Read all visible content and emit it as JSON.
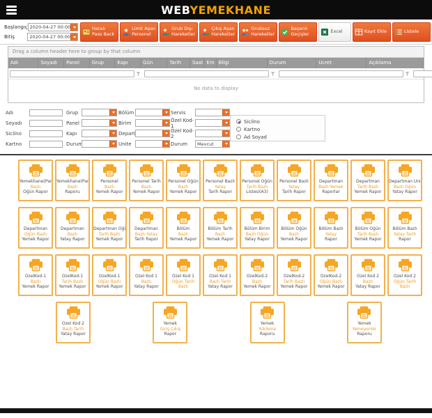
{
  "colors": {
    "accent_orange": "#e8702a",
    "brand_gold": "#f0a202",
    "report_border": "#f3b14c",
    "report_icon": "#f5a623",
    "grid_header_bg": "#9b9b9b"
  },
  "header": {
    "title_web": "WEB",
    "title_rest": "YEMEKHANE"
  },
  "toolbar": {
    "start_label": "Başlangıç",
    "start_value": "2020-04-27 00:00",
    "end_label": "Bitiş",
    "end_value": "2020-04-27 00:00",
    "buttons": [
      {
        "label": "Hatalı Pass Back",
        "icon": "idcard-icon",
        "style": "orange"
      },
      {
        "label": "Limit Aşan Personel",
        "icon": "person-icon",
        "style": "orange"
      },
      {
        "label": "Grub Dışı Hareketler",
        "icon": "person-arrow-icon",
        "style": "orange"
      },
      {
        "label": "Çıkış Aşan Hareketler",
        "icon": "person-arrow-icon",
        "style": "orange"
      },
      {
        "label": "Grubsuz Hareketler",
        "icon": "people-icon",
        "style": "orange"
      },
      {
        "label": "Başarılı Geçişler",
        "icon": "approve-icon",
        "style": "orange"
      },
      {
        "label": "Excel",
        "icon": "excel-icon",
        "style": "light"
      },
      {
        "label": "Kayıt Ekle",
        "icon": "add-record-icon",
        "style": "orange"
      },
      {
        "label": "Listele",
        "icon": "list-icon",
        "style": "orange"
      }
    ]
  },
  "grid": {
    "group_hint": "Drag a column header here to group by that column",
    "empty_text": "No data to display",
    "columns": [
      {
        "label": "Adı",
        "flex": 43,
        "filter": "plain"
      },
      {
        "label": "Soyadı",
        "flex": 35,
        "filter": "plain"
      },
      {
        "label": "Panel",
        "flex": 35,
        "filter": "plain"
      },
      {
        "label": "Grup",
        "flex": 35,
        "filter": "plain"
      },
      {
        "label": "Kapı",
        "flex": 35,
        "filter": "plain"
      },
      {
        "label": "Gün",
        "flex": 37,
        "filter": "plain"
      },
      {
        "label": "Tarih",
        "flex": 30,
        "filter": "orange"
      },
      {
        "label": "Saat",
        "flex": 16,
        "filter": "plain"
      },
      {
        "label": "Em",
        "flex": 12,
        "filter": "plain"
      },
      {
        "label": "Bilgi",
        "flex": 78,
        "filter": "plain"
      },
      {
        "label": "Durum",
        "flex": 75,
        "filter": "orange"
      },
      {
        "label": "Ucret",
        "flex": 77,
        "filter": "plain"
      },
      {
        "label": "Açıklama",
        "flex": 88,
        "filter": "plain"
      }
    ]
  },
  "form": {
    "rows": [
      {
        "label1": "Adı",
        "label2": "Grup",
        "label3": "Bölüm",
        "label4": "Servis",
        "value4": ""
      },
      {
        "label1": "Soyadı",
        "label2": "Panel",
        "label3": "Birim",
        "label4": "Özel Kod-1",
        "value4": ""
      },
      {
        "label1": "Sicilno",
        "label2": "Kapı",
        "label3": "Departman",
        "label4": "Özel Kod-2",
        "value4": ""
      },
      {
        "label1": "Kartno",
        "label2": "Durum",
        "label3": "Unite",
        "label4": "Durum",
        "value4": "Mevcut"
      }
    ],
    "radio_options": [
      {
        "label": "Sicilno",
        "selected": true
      },
      {
        "label": "Kartno",
        "selected": false
      },
      {
        "label": "Ad Soyad",
        "selected": false
      }
    ]
  },
  "reports": {
    "rows": [
      [
        {
          "lines": [
            "Yemekhane(Panel)",
            "Bazlı",
            "Öğün Rapor"
          ],
          "orange": [
            1
          ]
        },
        {
          "lines": [
            "Yemekhane(Panel)",
            "Bazlı",
            "Raporu"
          ],
          "orange": [
            1
          ]
        },
        {
          "lines": [
            "Personel",
            "Bazlı",
            "Yemek Rapor"
          ],
          "orange": [
            1
          ]
        },
        {
          "lines": [
            "Personel Tarih",
            "Bazlı",
            "Yemek Rapor"
          ],
          "orange": [
            1
          ]
        },
        {
          "lines": [
            "Personel Öğün",
            "Bazlı",
            "Yemek Rapor"
          ],
          "orange": [
            1
          ]
        },
        {
          "lines": [
            "Personel Bazlı",
            "Yatay",
            "Tarih Rapor"
          ],
          "orange": [
            1
          ]
        },
        {
          "lines": [
            "Personel Öğün",
            "Tarih Bazlı",
            "Listesi(A3)"
          ],
          "orange": [
            1
          ]
        },
        {
          "lines": [
            "Personel Bazlı",
            "Yatay",
            "Tarih Rapor"
          ],
          "orange": [
            1
          ]
        },
        {
          "lines": [
            "Departman",
            "Bazlı Yemek",
            "Raporlar"
          ],
          "orange": [
            1
          ]
        },
        {
          "lines": [
            "Departman",
            "Tarih Bazlı",
            "Yemek Rapor"
          ],
          "orange": [
            1
          ]
        },
        {
          "lines": [
            "Departman Ünite",
            "Bazlı Öğün",
            "Yatay Rapor"
          ],
          "orange": [
            1
          ]
        }
      ],
      [
        {
          "lines": [
            "Departman",
            "Öğün Bazlı",
            "Yemek Rapor"
          ],
          "orange": [
            1
          ]
        },
        {
          "lines": [
            "Departman",
            "Bazlı",
            "Yatay Rapor"
          ],
          "orange": [
            1
          ]
        },
        {
          "lines": [
            "Departman Öğün",
            "Tarih Bazlı",
            "Yemek Rapor"
          ],
          "orange": [
            1
          ]
        },
        {
          "lines": [
            "Departman",
            "Bazlı Yatay",
            "Tarih Rapor"
          ],
          "orange": [
            1
          ]
        },
        {
          "lines": [
            "Bölüm",
            "Bazlı",
            "Yemek Rapor"
          ],
          "orange": [
            1
          ]
        },
        {
          "lines": [
            "Bölüm Tarih",
            "Bazlı",
            "Yemek Rapor"
          ],
          "orange": [
            1
          ]
        },
        {
          "lines": [
            "Bölüm Birim",
            "Bazlı Öğün",
            "Yatay Rapor"
          ],
          "orange": [
            1
          ]
        },
        {
          "lines": [
            "Bölüm Öğün",
            "Bazlı",
            "Yemek Rapor"
          ],
          "orange": [
            1
          ]
        },
        {
          "lines": [
            "Bölüm Bazlı",
            "Yatay",
            "Rapor"
          ],
          "orange": [
            1
          ]
        },
        {
          "lines": [
            "Bölüm Öğün",
            "Tarih Bazlı",
            "Yemek Rapor"
          ],
          "orange": [
            1
          ]
        },
        {
          "lines": [
            "Bölüm Bazlı",
            "Yatay Tarih",
            "Rapor"
          ],
          "orange": [
            1
          ]
        }
      ],
      [
        {
          "lines": [
            "ÖzelKod-1",
            "Bazlı",
            "Yemek Rapor"
          ],
          "orange": [
            1
          ]
        },
        {
          "lines": [
            "ÖzelKod-1",
            "Tarih Bazlı",
            "Yemek Rapor"
          ],
          "orange": [
            1
          ]
        },
        {
          "lines": [
            "ÖzelKod-1",
            "Öğün Bazlı",
            "Yemek Rapor"
          ],
          "orange": [
            1
          ]
        },
        {
          "lines": [
            "Özel Kod 1",
            "Bazlı",
            "Yatay Rapor"
          ],
          "orange": [
            1
          ]
        },
        {
          "lines": [
            "Özel Kod 1",
            "Öğün Tarih",
            "Bazlı"
          ],
          "orange": [
            1,
            2
          ]
        },
        {
          "lines": [
            "Özel Kod 1",
            "Bazlı Tarih",
            "Yatay Rapor"
          ],
          "orange": [
            1
          ]
        },
        {
          "lines": [
            "ÖzelKod-2",
            "Bazlı",
            "Yemek Rapor"
          ],
          "orange": [
            1
          ]
        },
        {
          "lines": [
            "ÖzelKod-2",
            "Tarih Bazlı",
            "Yemek Rapor"
          ],
          "orange": [
            1
          ]
        },
        {
          "lines": [
            "ÖzelKod-2",
            "Öğün Bazlı",
            "Yemek Rapor"
          ],
          "orange": [
            1
          ]
        },
        {
          "lines": [
            "Özel Kod 2",
            "Bazlı",
            "Yatay Rapor"
          ],
          "orange": [
            1
          ]
        },
        {
          "lines": [
            "Özel Kod 2",
            "Öğün Tarih",
            "Bazlı"
          ],
          "orange": [
            1,
            2
          ]
        }
      ],
      [
        {
          "lines": [
            "Özel Kod 2",
            "Bazlı Tarih",
            "Yatay Rapor"
          ],
          "orange": [
            1
          ]
        },
        {
          "lines": [
            "Yemek",
            "Giriş Çıkış",
            "Rapor"
          ],
          "orange": [
            1
          ]
        },
        {
          "lines": [
            "Yemek",
            "Yükleme",
            "Raporu"
          ],
          "orange": [
            1
          ]
        },
        {
          "lines": [
            "Yemek",
            "Yemeyenler",
            "Raporu"
          ],
          "orange": [
            1
          ]
        }
      ]
    ]
  }
}
